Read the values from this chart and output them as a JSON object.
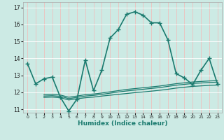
{
  "xlabel": "Humidex (Indice chaleur)",
  "background_color": "#cceae4",
  "grid_color": "#ffffff",
  "line_color": "#1a7a6e",
  "xlim": [
    -0.5,
    23.5
  ],
  "ylim": [
    10.8,
    17.3
  ],
  "xticks": [
    0,
    1,
    2,
    3,
    4,
    5,
    6,
    7,
    8,
    9,
    10,
    11,
    12,
    13,
    14,
    15,
    16,
    17,
    18,
    19,
    20,
    21,
    22,
    23
  ],
  "yticks": [
    11,
    12,
    13,
    14,
    15,
    16,
    17
  ],
  "series": [
    {
      "x": [
        0,
        1,
        2,
        3,
        4,
        5,
        6,
        7,
        8,
        9,
        10,
        11,
        12,
        13,
        14,
        15,
        16,
        17,
        18,
        19,
        20,
        21,
        22,
        23
      ],
      "y": [
        13.7,
        12.5,
        12.8,
        12.9,
        11.7,
        10.9,
        11.6,
        13.9,
        12.1,
        13.3,
        15.2,
        15.7,
        16.6,
        16.75,
        16.55,
        16.1,
        16.1,
        15.1,
        13.1,
        12.85,
        12.45,
        13.3,
        14.0,
        12.5
      ],
      "marker": "+",
      "linewidth": 1.2,
      "markersize": 4
    },
    {
      "x": [
        2,
        3,
        4,
        5,
        6,
        7,
        8,
        9,
        10,
        11,
        12,
        13,
        14,
        15,
        16,
        17,
        18,
        19,
        20,
        21,
        22,
        23
      ],
      "y": [
        11.7,
        11.72,
        11.68,
        11.55,
        11.62,
        11.68,
        11.72,
        11.78,
        11.83,
        11.88,
        11.93,
        11.98,
        12.02,
        12.07,
        12.12,
        12.18,
        12.25,
        12.3,
        12.35,
        12.38,
        12.41,
        12.43
      ],
      "marker": null,
      "linewidth": 0.9
    },
    {
      "x": [
        2,
        3,
        4,
        5,
        6,
        7,
        8,
        9,
        10,
        11,
        12,
        13,
        14,
        15,
        16,
        17,
        18,
        19,
        20,
        21,
        22,
        23
      ],
      "y": [
        11.78,
        11.8,
        11.76,
        11.63,
        11.7,
        11.78,
        11.82,
        11.88,
        11.95,
        12.02,
        12.08,
        12.13,
        12.18,
        12.23,
        12.28,
        12.35,
        12.42,
        12.47,
        12.52,
        12.55,
        12.58,
        12.6
      ],
      "marker": null,
      "linewidth": 0.9
    },
    {
      "x": [
        2,
        3,
        4,
        5,
        6,
        7,
        8,
        9,
        10,
        11,
        12,
        13,
        14,
        15,
        16,
        17,
        18,
        19,
        20,
        21,
        22,
        23
      ],
      "y": [
        11.86,
        11.88,
        11.84,
        11.71,
        11.78,
        11.86,
        11.9,
        11.96,
        12.03,
        12.1,
        12.17,
        12.22,
        12.27,
        12.32,
        12.37,
        12.44,
        12.51,
        12.56,
        12.61,
        12.64,
        12.67,
        12.69
      ],
      "marker": null,
      "linewidth": 0.9
    }
  ]
}
